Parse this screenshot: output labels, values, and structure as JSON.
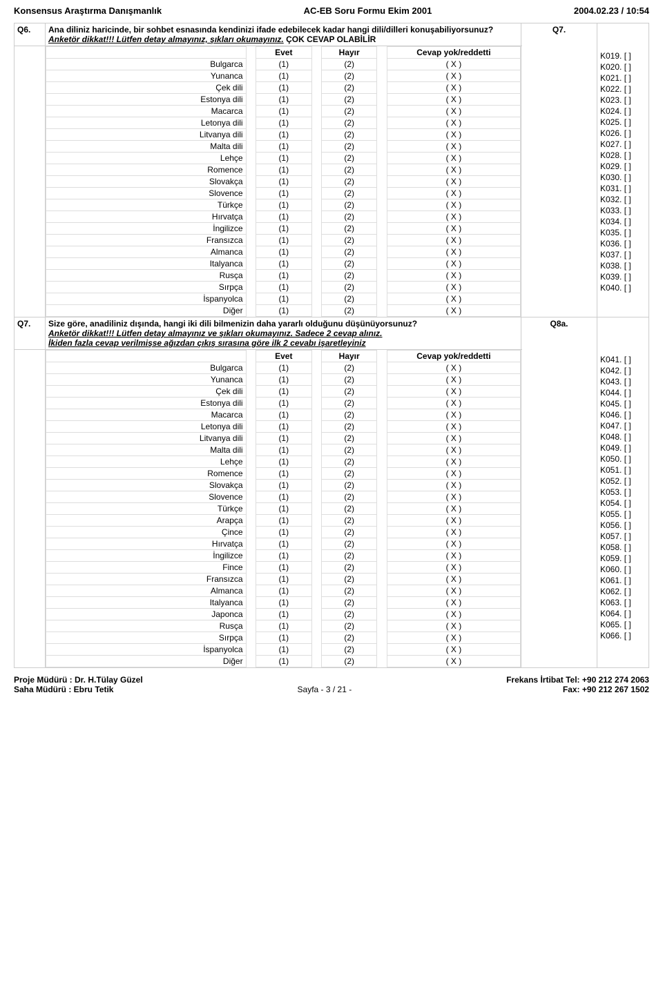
{
  "header": {
    "left": "Konsensus Araştırma Danışmanlık",
    "center": "AC-EB Soru Formu Ekim 2001",
    "right": "2004.02.23 / 10:54"
  },
  "q6": {
    "num": "Q6.",
    "text_a": "Ana diliniz haricinde, bir sohbet esnasında kendinizi ifade edebilecek kadar hangi dili/dilleri konuşabiliyorsunuz?",
    "text_b": "Anketör dikkat!!! Lütfen detay almayınız, şıkları okumayınız.",
    "text_c": "ÇOK CEVAP OLABİLİR",
    "col_evet": "Evet",
    "col_hayir": "Hayır",
    "col_cevap": "Cevap yok/reddetti",
    "klabel": "Q7.",
    "langs": [
      "Bulgarca",
      "Yunanca",
      "Çek dili",
      "Estonya dili",
      "Macarca",
      "Letonya dili",
      "Litvanya dili",
      "Malta dili",
      "Lehçe",
      "Romence",
      "Slovakça",
      "Slovence",
      "Türkçe",
      "Hırvatça",
      "İngilizce",
      "Fransızca",
      "Almanca",
      "Italyanca",
      "Rusça",
      "Sırpça",
      "İspanyolca",
      "Diğer"
    ],
    "kcodes": [
      "K019.",
      "K020.",
      "K021.",
      "K022.",
      "K023.",
      "K024.",
      "K025.",
      "K026.",
      "K027.",
      "K028.",
      "K029.",
      "K030.",
      "K031.",
      "K032.",
      "K033.",
      "K034.",
      "K035.",
      "K036.",
      "K037.",
      "K038.",
      "K039.",
      "K040."
    ]
  },
  "q7": {
    "num": "Q7.",
    "text_a": "Size göre, anadiliniz dışında, hangi iki dili bilmenizin daha yararlı olduğunu düşünüyorsunuz?",
    "text_b": "Anketör dikkat!!! Lütfen detay almayınız ve şıkları okumayınız. Sadece 2 cevap alınız.",
    "text_c": "İkiden fazla cevap verilmişse ağızdan çıkış sırasına göre ilk 2 cevabı işaretleyiniz",
    "col_evet": "Evet",
    "col_hayir": "Hayır",
    "col_cevap": "Cevap yok/reddetti",
    "klabel": "Q8a.",
    "langs": [
      "Bulgarca",
      "Yunanca",
      "Çek dili",
      "Estonya dili",
      "Macarca",
      "Letonya dili",
      "Litvanya dili",
      "Malta dili",
      "Lehçe",
      "Romence",
      "Slovakça",
      "Slovence",
      "Türkçe",
      "Arapça",
      "Çince",
      "Hırvatça",
      "İngilizce",
      "Fince",
      "Fransızca",
      "Almanca",
      "Italyanca",
      "Japonca",
      "Rusça",
      "Sırpça",
      "İspanyolca",
      "Diğer"
    ],
    "kcodes": [
      "K041.",
      "K042.",
      "K043.",
      "K044.",
      "K045.",
      "K046.",
      "K047.",
      "K048.",
      "K049.",
      "K050.",
      "K051.",
      "K052.",
      "K053.",
      "K054.",
      "K055.",
      "K056.",
      "K057.",
      "K058.",
      "K059.",
      "K060.",
      "K061.",
      "K062.",
      "K063.",
      "K064.",
      "K065.",
      "K066."
    ]
  },
  "cell": {
    "one": "(1)",
    "two": "(2)",
    "x": "( X )",
    "br": "[        ]"
  },
  "footer": {
    "l1": "Proje Müdürü : Dr. H.Tülay Güzel",
    "l2": "Saha Müdürü : Ebru Tetik",
    "mid": "Sayfa - 3 / 21 -",
    "r1": "Frekans İrtibat Tel: +90 212 274 2063",
    "r2": "Fax: +90 212 267 1502"
  }
}
